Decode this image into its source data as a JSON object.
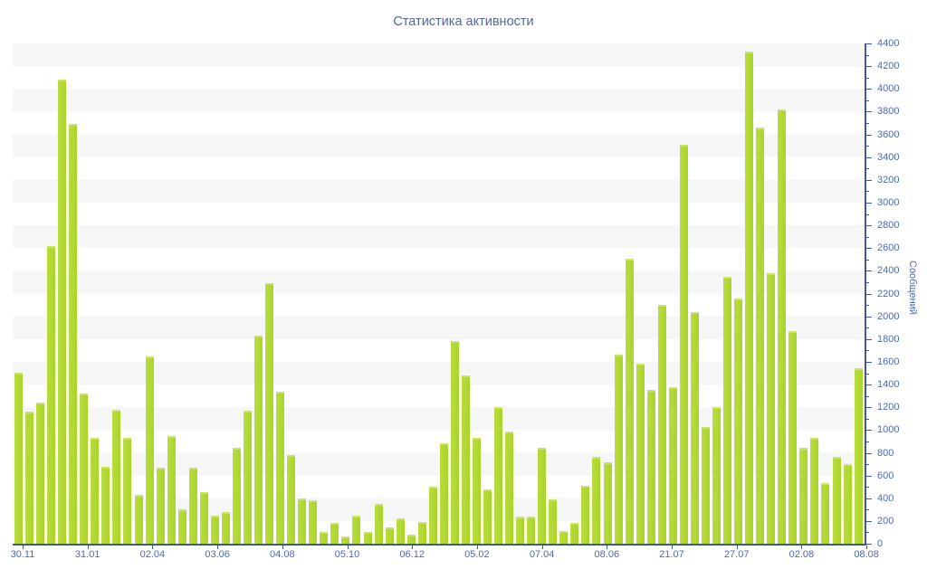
{
  "chart_data": {
    "type": "bar",
    "title": "Статистика активности",
    "ylabel": "Сообщений",
    "xlabel": "",
    "legend": "none",
    "grid": "alternating horizontal bands every 200 units",
    "y_min": 0,
    "y_max": 4400,
    "y_tick_step": 200,
    "y_minor_tick_step": 100,
    "y_axis_side": "right",
    "y_tick_labels": [
      "0",
      "200",
      "400",
      "600",
      "800",
      "1000",
      "1200",
      "1400",
      "1600",
      "1800",
      "2000",
      "2200",
      "2400",
      "2600",
      "2800",
      "3000",
      "3200",
      "3400",
      "3600",
      "3800",
      "4000",
      "4200",
      "4400"
    ],
    "x_tick_labels": [
      "30.11",
      "31.01",
      "02.04",
      "03.06",
      "04.08",
      "05.10",
      "06.12",
      "05.02",
      "07.04",
      "08.06",
      "21.07",
      "27.07",
      "02.08",
      "08.08"
    ],
    "values": [
      1500,
      1160,
      1240,
      2620,
      4080,
      3690,
      1320,
      930,
      680,
      1180,
      930,
      430,
      1650,
      670,
      950,
      300,
      670,
      450,
      250,
      280,
      840,
      1170,
      1830,
      2290,
      1340,
      780,
      400,
      380,
      100,
      180,
      60,
      250,
      100,
      350,
      140,
      220,
      80,
      190,
      500,
      880,
      1780,
      1480,
      930,
      480,
      1200,
      990,
      240,
      240,
      840,
      390,
      110,
      180,
      510,
      760,
      720,
      1660,
      2510,
      1580,
      1350,
      2100,
      1380,
      3510,
      2040,
      1030,
      1200,
      2350,
      2160,
      4330,
      3660,
      2380,
      3820,
      1870,
      840,
      930,
      530,
      760,
      700,
      1540
    ],
    "colors": {
      "bar_fill": "#aad42b",
      "bar_highlight": "#cbe467",
      "axis_line": "#3e56a3",
      "tick_label": "#4d68b5",
      "title_text": "#50699f",
      "band_gray": "#f6f6f6",
      "band_white": "#ffffff",
      "background": "#ffffff"
    }
  }
}
